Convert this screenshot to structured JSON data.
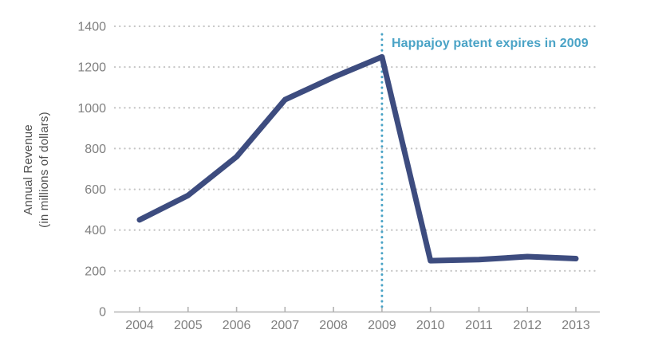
{
  "figure": {
    "background": "#ffffff"
  },
  "chart_data": {
    "type": "line",
    "title": "",
    "xlabel": "",
    "ylabel_line1": "Annual Revenue",
    "ylabel_line2": "(in millions of dollars)",
    "x": [
      2004,
      2005,
      2006,
      2007,
      2008,
      2009,
      2010,
      2011,
      2012,
      2013
    ],
    "series": [
      {
        "name": "Annual Revenue (millions of dollars)",
        "values": [
          450,
          570,
          760,
          1040,
          1150,
          1250,
          250,
          255,
          270,
          260
        ]
      }
    ],
    "ylim": [
      0,
      1400
    ],
    "ytick_step": 200,
    "yticks": [
      0,
      200,
      400,
      600,
      800,
      1000,
      1200,
      1400
    ],
    "grid": "dotted-horizontal",
    "legend": "none",
    "annotation": {
      "text": "Happajoy patent expires in 2009",
      "x": 2009,
      "line_style": "dotted-vertical"
    },
    "colors": {
      "line": "#3d4c7f",
      "annotation": "#4aa3c6",
      "grid": "#c6c6c6",
      "axis": "#b3b3b3",
      "tick_label": "#7f7f7f",
      "axis_title": "#4f4f4f",
      "background": "#ffffff"
    }
  }
}
